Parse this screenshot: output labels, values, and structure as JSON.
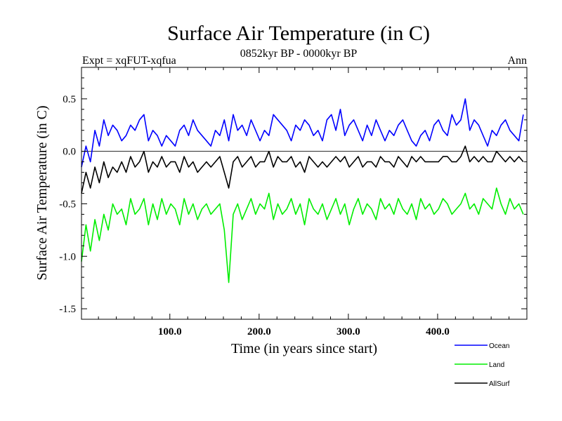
{
  "chart_data": {
    "type": "line",
    "title": "Surface Air Temperature (in C)",
    "subtitle_left": "Expt = xqFUT-xqfua",
    "subtitle_center": "0852kyr BP - 0000kyr BP",
    "subtitle_right": "Ann",
    "xlabel": "Time (in years since start)",
    "ylabel": "Surface Air Temperature (in C)",
    "xlim": [
      1,
      500
    ],
    "ylim": [
      -1.6,
      0.8
    ],
    "xticks": [
      100,
      200,
      300,
      400
    ],
    "xtick_labels": [
      "100.0",
      "200.0",
      "300.0",
      "400.0"
    ],
    "yticks": [
      0.5,
      0.0,
      -0.5,
      -1.0,
      -1.5
    ],
    "ytick_labels": [
      "0.5",
      "0.0",
      "-0.5",
      "-1.0",
      "-1.5"
    ],
    "zero_line": 0.0,
    "legend": "bottom-right",
    "series": [
      {
        "name": "Ocean",
        "color": "#0000ff",
        "sample_step": 5,
        "values": [
          -0.15,
          0.05,
          -0.1,
          0.2,
          0.05,
          0.3,
          0.15,
          0.25,
          0.2,
          0.1,
          0.15,
          0.25,
          0.2,
          0.3,
          0.35,
          0.1,
          0.2,
          0.15,
          0.05,
          0.15,
          0.1,
          0.05,
          0.2,
          0.25,
          0.15,
          0.3,
          0.2,
          0.15,
          0.1,
          0.05,
          0.2,
          0.15,
          0.3,
          0.1,
          0.35,
          0.2,
          0.25,
          0.15,
          0.3,
          0.2,
          0.1,
          0.2,
          0.15,
          0.35,
          0.3,
          0.25,
          0.2,
          0.1,
          0.25,
          0.2,
          0.3,
          0.25,
          0.15,
          0.2,
          0.1,
          0.3,
          0.35,
          0.2,
          0.4,
          0.15,
          0.25,
          0.3,
          0.2,
          0.1,
          0.25,
          0.15,
          0.3,
          0.2,
          0.1,
          0.2,
          0.15,
          0.25,
          0.3,
          0.2,
          0.1,
          0.05,
          0.15,
          0.2,
          0.1,
          0.25,
          0.3,
          0.2,
          0.15,
          0.35,
          0.25,
          0.3,
          0.5,
          0.2,
          0.3,
          0.25,
          0.15,
          0.05,
          0.2,
          0.15,
          0.25,
          0.3,
          0.2,
          0.15,
          0.1,
          0.35
        ]
      },
      {
        "name": "Land",
        "color": "#00ee00",
        "sample_step": 5,
        "values": [
          -1.05,
          -0.7,
          -0.95,
          -0.65,
          -0.85,
          -0.6,
          -0.75,
          -0.5,
          -0.6,
          -0.55,
          -0.7,
          -0.45,
          -0.6,
          -0.55,
          -0.45,
          -0.7,
          -0.5,
          -0.65,
          -0.45,
          -0.6,
          -0.5,
          -0.55,
          -0.7,
          -0.45,
          -0.6,
          -0.5,
          -0.65,
          -0.55,
          -0.5,
          -0.6,
          -0.55,
          -0.5,
          -0.75,
          -1.25,
          -0.6,
          -0.5,
          -0.65,
          -0.55,
          -0.45,
          -0.6,
          -0.5,
          -0.55,
          -0.4,
          -0.65,
          -0.5,
          -0.6,
          -0.55,
          -0.45,
          -0.6,
          -0.5,
          -0.7,
          -0.45,
          -0.55,
          -0.6,
          -0.5,
          -0.65,
          -0.55,
          -0.45,
          -0.6,
          -0.5,
          -0.7,
          -0.55,
          -0.45,
          -0.6,
          -0.5,
          -0.55,
          -0.65,
          -0.45,
          -0.55,
          -0.5,
          -0.6,
          -0.45,
          -0.55,
          -0.6,
          -0.5,
          -0.65,
          -0.45,
          -0.55,
          -0.5,
          -0.6,
          -0.55,
          -0.45,
          -0.5,
          -0.6,
          -0.55,
          -0.5,
          -0.4,
          -0.55,
          -0.5,
          -0.6,
          -0.45,
          -0.5,
          -0.55,
          -0.35,
          -0.5,
          -0.6,
          -0.45,
          -0.55,
          -0.5,
          -0.6
        ]
      },
      {
        "name": "AllSurf",
        "color": "#000000",
        "sample_step": 5,
        "values": [
          -0.4,
          -0.2,
          -0.35,
          -0.15,
          -0.3,
          -0.1,
          -0.25,
          -0.15,
          -0.2,
          -0.1,
          -0.2,
          -0.05,
          -0.15,
          -0.1,
          0.0,
          -0.2,
          -0.1,
          -0.15,
          -0.05,
          -0.15,
          -0.1,
          -0.1,
          -0.2,
          -0.05,
          -0.15,
          -0.1,
          -0.2,
          -0.15,
          -0.1,
          -0.15,
          -0.1,
          -0.05,
          -0.2,
          -0.35,
          -0.1,
          -0.05,
          -0.15,
          -0.1,
          -0.05,
          -0.15,
          -0.1,
          -0.1,
          0.0,
          -0.15,
          -0.05,
          -0.1,
          -0.1,
          -0.05,
          -0.15,
          -0.1,
          -0.2,
          -0.05,
          -0.1,
          -0.15,
          -0.1,
          -0.15,
          -0.1,
          -0.05,
          -0.1,
          -0.05,
          -0.15,
          -0.1,
          -0.05,
          -0.15,
          -0.1,
          -0.1,
          -0.15,
          -0.05,
          -0.1,
          -0.1,
          -0.15,
          -0.05,
          -0.1,
          -0.15,
          -0.05,
          -0.1,
          -0.05,
          -0.1,
          -0.1,
          -0.1,
          -0.1,
          -0.05,
          -0.05,
          -0.1,
          -0.1,
          -0.05,
          0.05,
          -0.1,
          -0.05,
          -0.1,
          -0.05,
          -0.1,
          -0.1,
          0.0,
          -0.05,
          -0.1,
          -0.05,
          -0.1,
          -0.05,
          -0.1
        ]
      }
    ]
  }
}
